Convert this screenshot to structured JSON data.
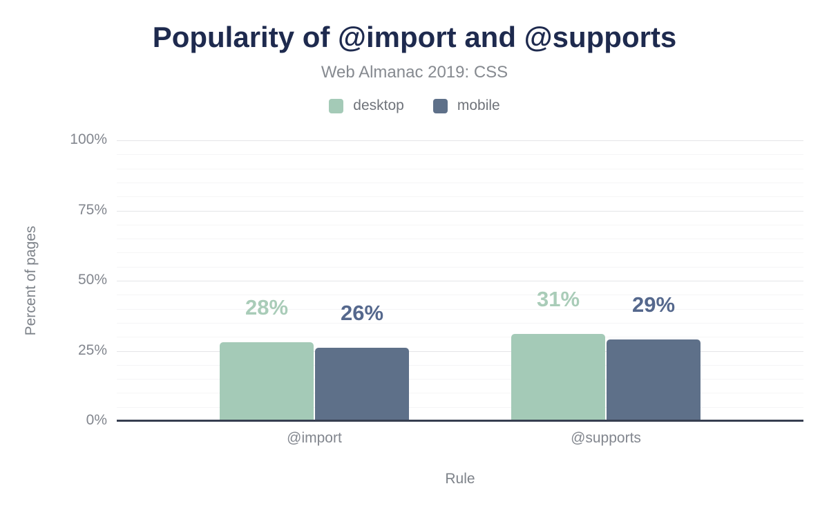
{
  "chart_data": {
    "type": "bar",
    "title": "Popularity of @import and @supports",
    "subtitle": "Web Almanac 2019: CSS",
    "xlabel": "Rule",
    "ylabel": "Percent of pages",
    "categories": [
      "@import",
      "@supports"
    ],
    "series": [
      {
        "name": "desktop",
        "values": [
          28,
          31
        ],
        "display_values": [
          "28%",
          "31%"
        ],
        "color": "#a4cab7",
        "label_color": "#a9ccb8"
      },
      {
        "name": "mobile",
        "values": [
          26,
          29
        ],
        "display_values": [
          "26%",
          "29%"
        ],
        "color": "#5e7089",
        "label_color": "#55688d"
      }
    ],
    "ylim": [
      0,
      100
    ],
    "yticks": [
      0,
      25,
      50,
      75,
      100
    ],
    "ytick_labels": [
      "0%",
      "25%",
      "50%",
      "75%",
      "100%"
    ],
    "minor_grid_step": 5,
    "major_grid_step": 25,
    "grid": true,
    "legend_position": "top"
  },
  "palette": {
    "background": "#ffffff",
    "title": "#1e2a4e",
    "subtitle": "#868a90",
    "legend_text": "#6f737a",
    "tick_text": "#82868e",
    "axis_title_text": "#7d8289",
    "axis_line": "#363e50",
    "gridline_major": "#e4e5e7",
    "gridline_minor": "#f5f5f6"
  }
}
